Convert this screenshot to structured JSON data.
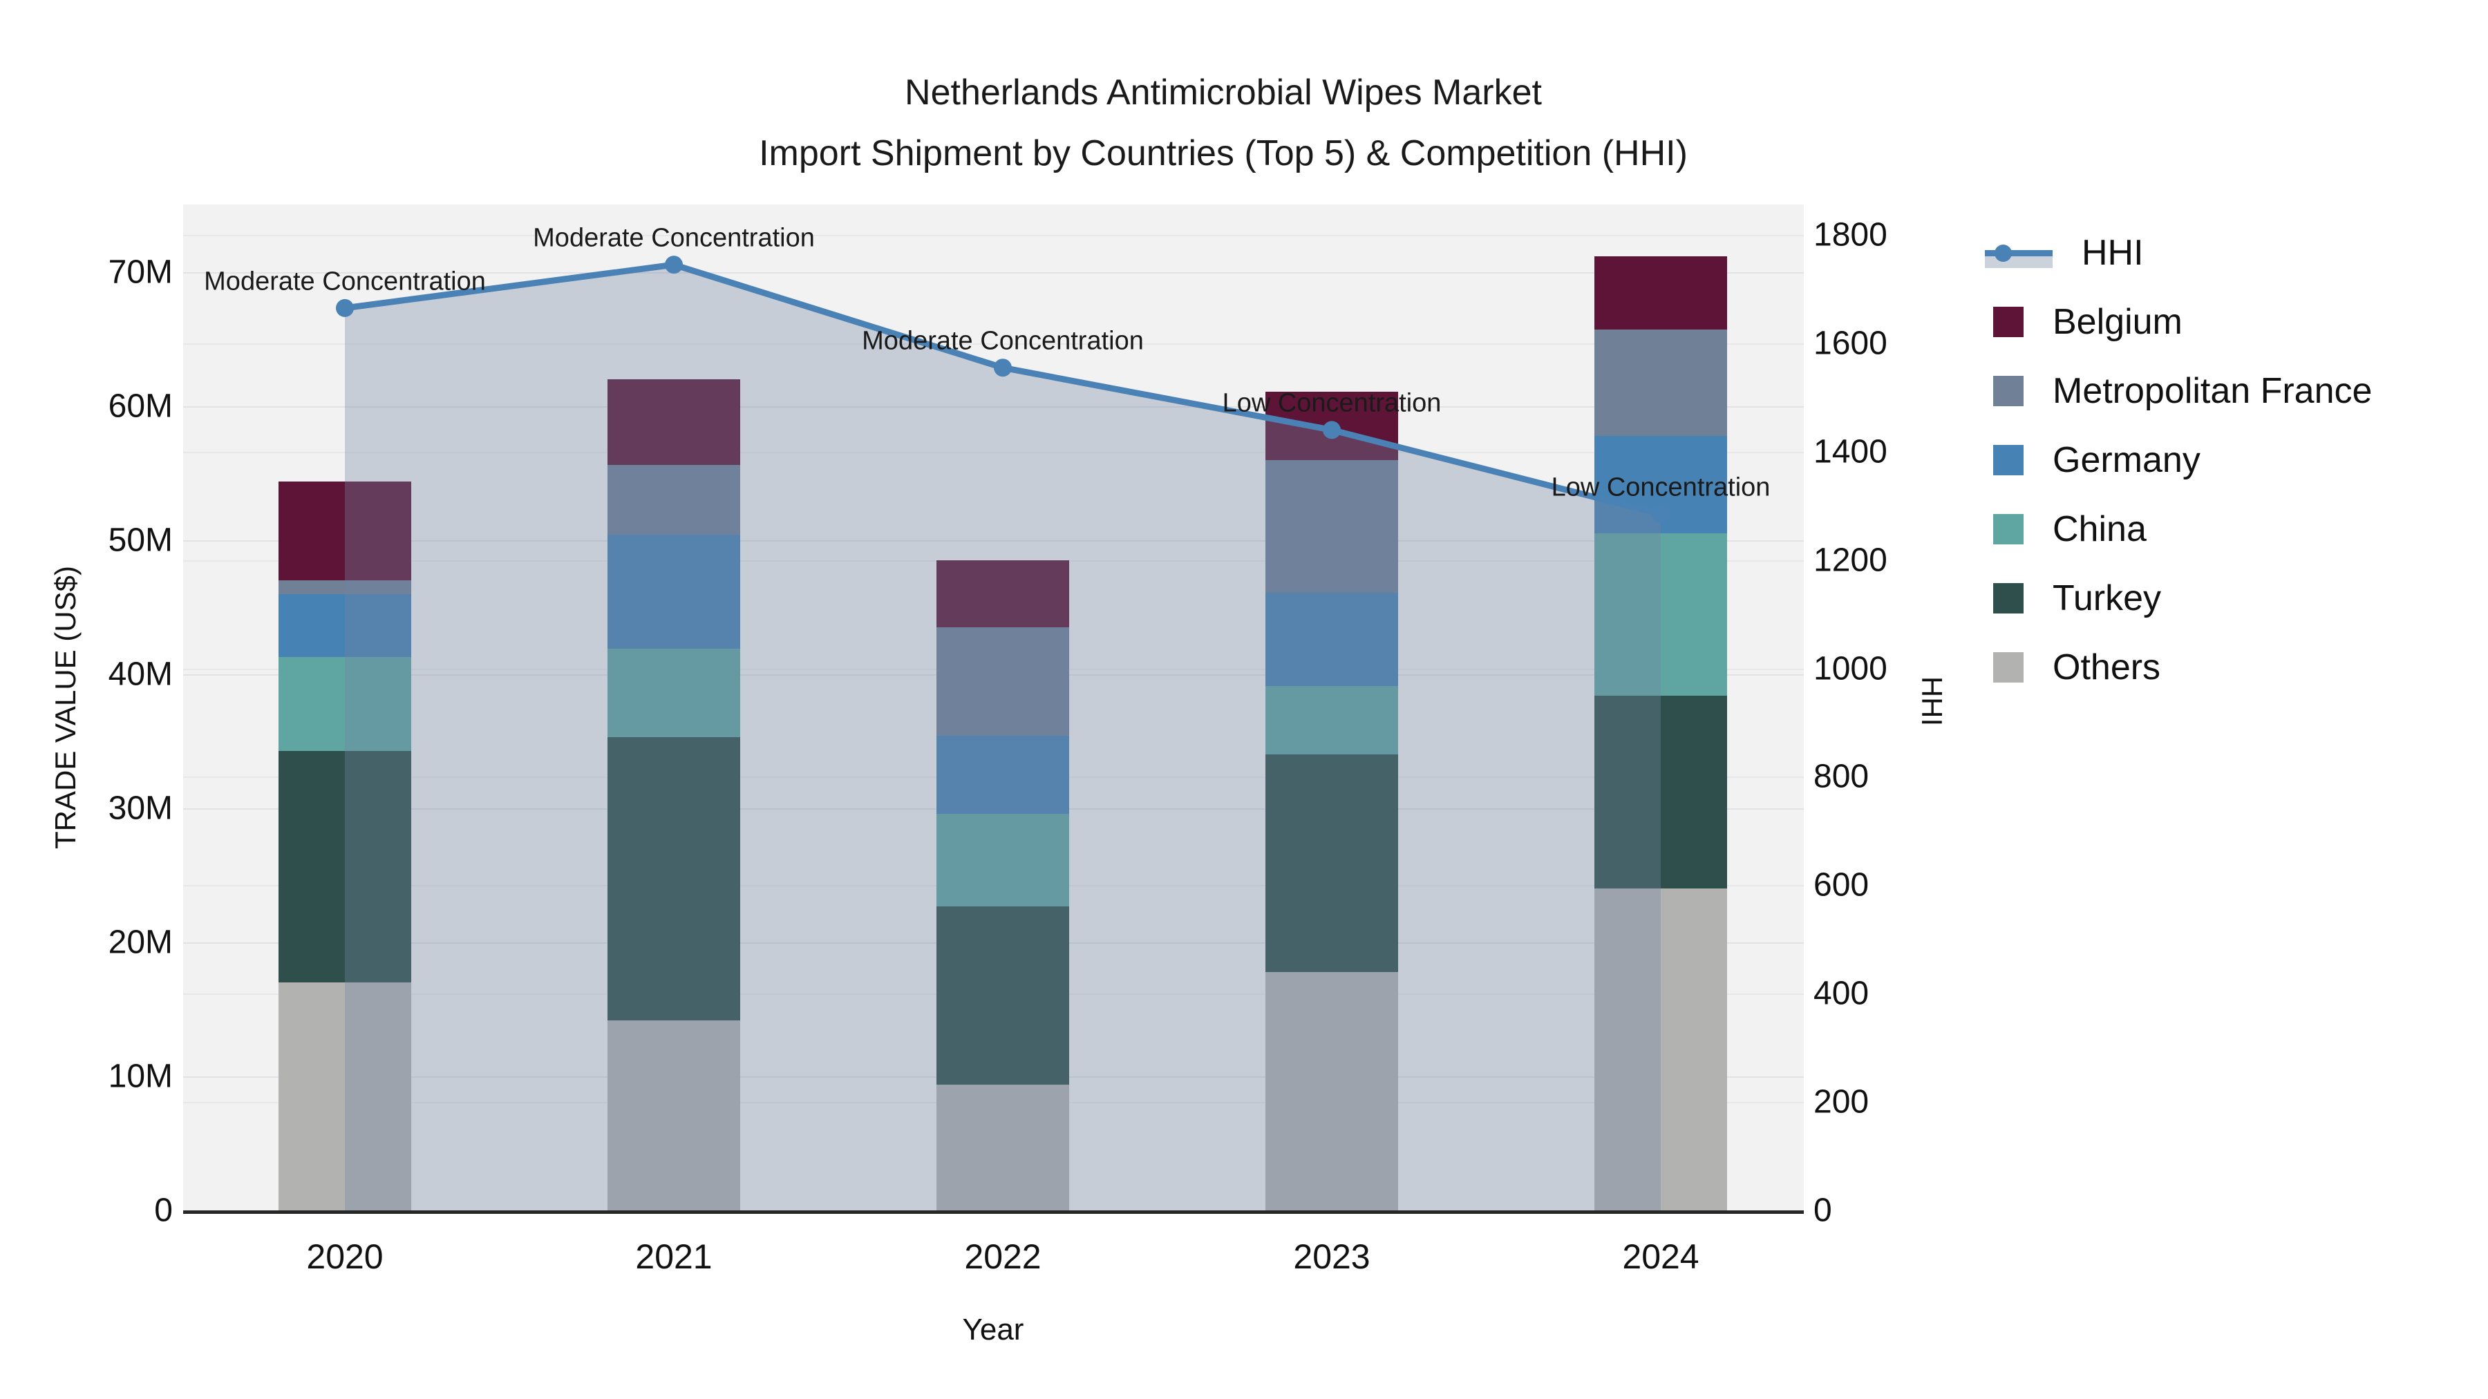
{
  "title": {
    "line1": "Netherlands Antimicrobial Wipes Market",
    "line2": "Import Shipment by Countries (Top 5) & Competition (HHI)"
  },
  "axes": {
    "x": {
      "title": "Year",
      "ticks": [
        "2020",
        "2021",
        "2022",
        "2023",
        "2024"
      ]
    },
    "y_left": {
      "title": "TRADE VALUE (US$)",
      "ticks": [
        "0",
        "10M",
        "20M",
        "30M",
        "40M",
        "50M",
        "60M",
        "70M"
      ]
    },
    "y_right": {
      "title": "HHI",
      "ticks": [
        "0",
        "200",
        "400",
        "600",
        "800",
        "1000",
        "1200",
        "1400",
        "1600",
        "1800"
      ]
    }
  },
  "legend": {
    "items": [
      {
        "label": "HHI",
        "type": "line",
        "color": "#4a82b6"
      },
      {
        "label": "Belgium",
        "type": "swatch",
        "color": "#5e1437"
      },
      {
        "label": "Metropolitan France",
        "type": "swatch",
        "color": "#708096"
      },
      {
        "label": "Germany",
        "type": "swatch",
        "color": "#4682b4"
      },
      {
        "label": "China",
        "type": "swatch",
        "color": "#5fa5a2"
      },
      {
        "label": "Turkey",
        "type": "swatch",
        "color": "#2e4f4b"
      },
      {
        "label": "Others",
        "type": "swatch",
        "color": "#b2b2b0"
      }
    ]
  },
  "chart_data": {
    "type": "combo: stacked bar + line",
    "categories": [
      "2020",
      "2021",
      "2022",
      "2023",
      "2024"
    ],
    "stack_order_bottom_to_top": [
      "Others",
      "Turkey",
      "China",
      "Germany",
      "Metropolitan France",
      "Belgium"
    ],
    "bar_series": [
      {
        "name": "Others",
        "color": "#b2b2b0",
        "values_musd": [
          17.0,
          14.2,
          9.4,
          17.8,
          24.0
        ]
      },
      {
        "name": "Turkey",
        "color": "#2e4f4b",
        "values_musd": [
          17.3,
          21.1,
          13.3,
          16.2,
          14.4
        ]
      },
      {
        "name": "China",
        "color": "#5fa5a2",
        "values_musd": [
          7.0,
          6.6,
          6.9,
          5.1,
          12.1
        ]
      },
      {
        "name": "Germany",
        "color": "#4682b4",
        "values_musd": [
          4.7,
          8.5,
          5.8,
          7.0,
          7.3
        ]
      },
      {
        "name": "Metropolitan France",
        "color": "#708096",
        "values_musd": [
          1.0,
          5.2,
          8.1,
          9.9,
          7.9
        ]
      },
      {
        "name": "Belgium",
        "color": "#5e1437",
        "values_musd": [
          7.4,
          6.4,
          5.0,
          5.1,
          5.5
        ]
      }
    ],
    "bar_totals_musd": [
      54.4,
      62.0,
      48.5,
      61.0,
      71.2
    ],
    "line_series": {
      "name": "HHI",
      "color": "#4a82b6",
      "area_fill_color": "rgba(115,135,165,0.34)",
      "values": [
        1665,
        1745,
        1555,
        1440,
        1285
      ]
    },
    "annotations": [
      {
        "x": "2020",
        "text": "Moderate Concentration"
      },
      {
        "x": "2021",
        "text": "Moderate Concentration"
      },
      {
        "x": "2022",
        "text": "Moderate Concentration"
      },
      {
        "x": "2023",
        "text": "Low Concentration"
      },
      {
        "x": "2024",
        "text": "Low Concentration"
      }
    ],
    "xlabel": "Year",
    "ylabel_left": "TRADE VALUE (US$)",
    "ylabel_right": "HHI",
    "ylim_left_musd": [
      0,
      75
    ],
    "ylim_right_hhi": [
      0,
      1800
    ],
    "grid": true,
    "legend_position": "right"
  }
}
